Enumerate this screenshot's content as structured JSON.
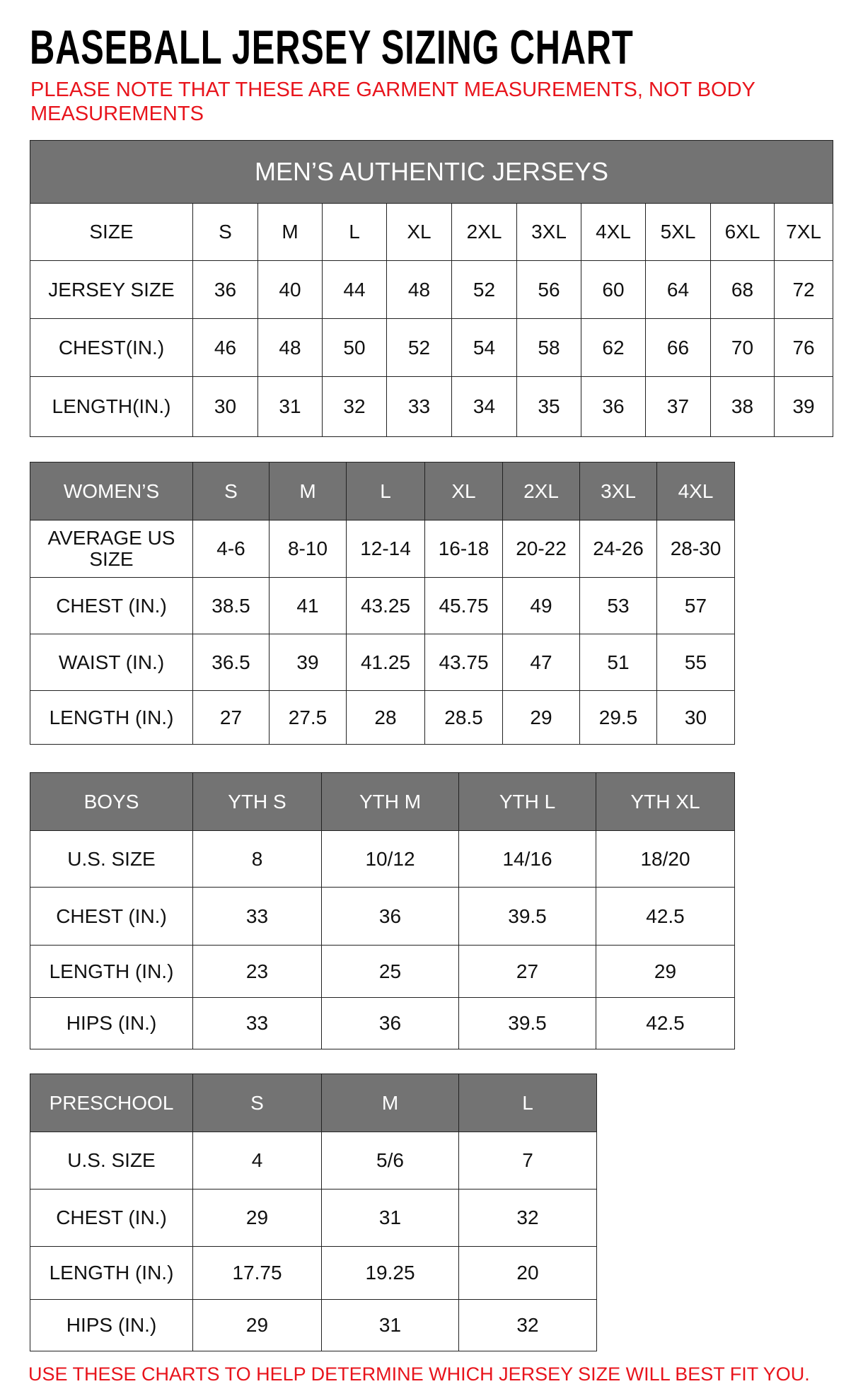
{
  "title": "BASEBALL JERSEY SIZING CHART",
  "note": "PLEASE NOTE THAT THESE ARE GARMENT MEASUREMENTS, NOT BODY MEASUREMENTS",
  "footer": "USE THESE CHARTS TO HELP DETERMINE WHICH JERSEY SIZE WILL BEST FIT YOU.",
  "colors": {
    "header_bg": "#737373",
    "note_red": "#e8141c"
  },
  "tables": [
    {
      "id": "mens",
      "banner": "MEN’S AUTHENTIC JERSEYS",
      "header": [
        "SIZE",
        "S",
        "M",
        "L",
        "XL",
        "2XL",
        "3XL",
        "4XL",
        "5XL",
        "6XL",
        "7XL"
      ],
      "header_style": "plain",
      "rows": [
        [
          "JERSEY SIZE",
          "36",
          "40",
          "44",
          "48",
          "52",
          "56",
          "60",
          "64",
          "68",
          "72"
        ],
        [
          "CHEST(IN.)",
          "46",
          "48",
          "50",
          "52",
          "54",
          "58",
          "62",
          "66",
          "70",
          "76"
        ],
        [
          "LENGTH(IN.)",
          "30",
          "31",
          "32",
          "33",
          "34",
          "35",
          "36",
          "37",
          "38",
          "39"
        ]
      ]
    },
    {
      "id": "womens",
      "header": [
        "WOMEN’S",
        "S",
        "M",
        "L",
        "XL",
        "2XL",
        "3XL",
        "4XL"
      ],
      "header_style": "gray",
      "rows": [
        [
          "AVERAGE US SIZE",
          "4-6",
          "8-10",
          "12-14",
          "16-18",
          "20-22",
          "24-26",
          "28-30"
        ],
        [
          "CHEST (IN.)",
          "38.5",
          "41",
          "43.25",
          "45.75",
          "49",
          "53",
          "57"
        ],
        [
          "WAIST (IN.)",
          "36.5",
          "39",
          "41.25",
          "43.75",
          "47",
          "51",
          "55"
        ],
        [
          "LENGTH (IN.)",
          "27",
          "27.5",
          "28",
          "28.5",
          "29",
          "29.5",
          "30"
        ]
      ]
    },
    {
      "id": "boys",
      "header": [
        "BOYS",
        "YTH S",
        "YTH M",
        "YTH L",
        "YTH XL"
      ],
      "header_style": "gray",
      "rows": [
        [
          "U.S. SIZE",
          "8",
          "10/12",
          "14/16",
          "18/20"
        ],
        [
          "CHEST (IN.)",
          "33",
          "36",
          "39.5",
          "42.5"
        ],
        [
          "LENGTH (IN.)",
          "23",
          "25",
          "27",
          "29"
        ],
        [
          "HIPS (IN.)",
          "33",
          "36",
          "39.5",
          "42.5"
        ]
      ]
    },
    {
      "id": "preschool",
      "header": [
        "PRESCHOOL",
        "S",
        "M",
        "L"
      ],
      "header_style": "gray",
      "rows": [
        [
          "U.S. SIZE",
          "4",
          "5/6",
          "7"
        ],
        [
          "CHEST (IN.)",
          "29",
          "31",
          "32"
        ],
        [
          "LENGTH (IN.)",
          "17.75",
          "19.25",
          "20"
        ],
        [
          "HIPS (IN.)",
          "29",
          "31",
          "32"
        ]
      ]
    }
  ]
}
